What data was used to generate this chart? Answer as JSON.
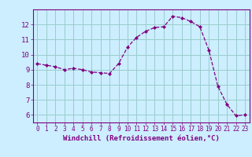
{
  "x": [
    0,
    1,
    2,
    3,
    4,
    5,
    6,
    7,
    8,
    9,
    10,
    11,
    12,
    13,
    14,
    15,
    16,
    17,
    18,
    19,
    20,
    21,
    22,
    23
  ],
  "y": [
    9.4,
    9.3,
    9.2,
    9.0,
    9.1,
    9.0,
    8.85,
    8.8,
    8.75,
    9.4,
    10.5,
    11.15,
    11.55,
    11.8,
    11.85,
    12.55,
    12.45,
    12.2,
    11.85,
    10.3,
    7.9,
    6.7,
    5.95,
    6.0
  ],
  "line_color": "#800080",
  "marker": "D",
  "marker_size": 2.0,
  "bg_color": "#cceeff",
  "grid_color": "#99cccc",
  "xlabel": "Windchill (Refroidissement éolien,°C)",
  "xlabel_color": "#800080",
  "tick_color": "#800080",
  "ylim": [
    5.5,
    13.0
  ],
  "xlim": [
    -0.5,
    23.5
  ],
  "yticks": [
    6,
    7,
    8,
    9,
    10,
    11,
    12
  ],
  "xticks": [
    0,
    1,
    2,
    3,
    4,
    5,
    6,
    7,
    8,
    9,
    10,
    11,
    12,
    13,
    14,
    15,
    16,
    17,
    18,
    19,
    20,
    21,
    22,
    23
  ],
  "spine_color": "#800080"
}
